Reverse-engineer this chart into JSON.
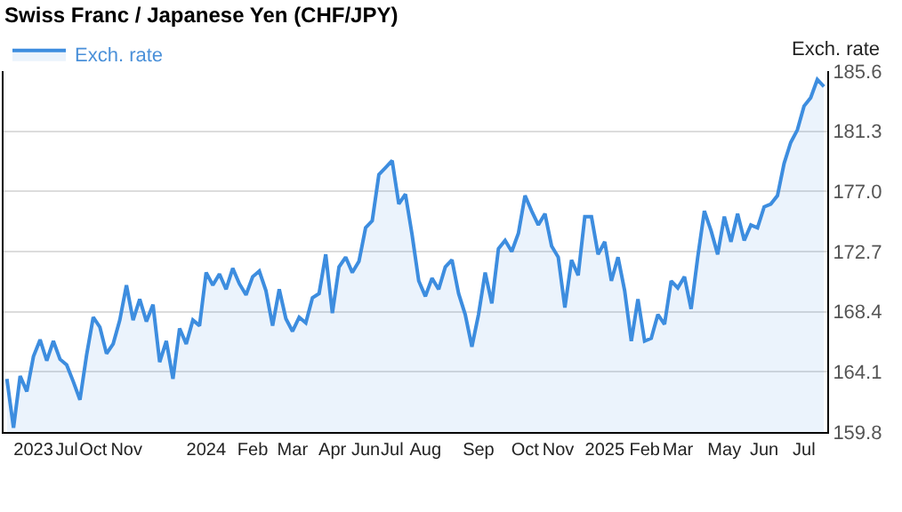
{
  "chart_data": {
    "type": "area",
    "title": "Swiss Franc / Japanese Yen (CHF/JPY)",
    "ylabel": "Exch. rate",
    "categories": [
      null,
      null,
      null,
      null,
      "2023",
      null,
      null,
      null,
      null,
      "Jul",
      null,
      null,
      null,
      "Oct",
      null,
      null,
      null,
      null,
      "Nov",
      null,
      null,
      null,
      null,
      null,
      null,
      null,
      null,
      null,
      null,
      null,
      "2024",
      null,
      null,
      null,
      null,
      null,
      null,
      "Feb",
      null,
      null,
      null,
      null,
      null,
      "Mar",
      null,
      null,
      null,
      null,
      null,
      "Apr",
      null,
      null,
      null,
      null,
      "Jun",
      null,
      null,
      null,
      "Jul",
      null,
      null,
      null,
      null,
      "Aug",
      null,
      null,
      null,
      null,
      null,
      null,
      null,
      "Sep",
      null,
      null,
      null,
      null,
      null,
      null,
      "Oct",
      null,
      null,
      null,
      null,
      "Nov",
      null,
      null,
      null,
      null,
      null,
      null,
      "2025",
      null,
      null,
      null,
      null,
      null,
      "Feb",
      null,
      null,
      null,
      null,
      "Mar",
      null,
      null,
      null,
      null,
      null,
      null,
      "May",
      null,
      null,
      null,
      null,
      null,
      "Jun",
      null,
      null,
      null,
      null,
      null,
      "Jul",
      null,
      null,
      null
    ],
    "series": [
      {
        "name": "Exch. rate",
        "color": "#3d8ddf",
        "values": [
          163.6,
          160.1,
          163.8,
          162.7,
          165.2,
          166.4,
          164.9,
          166.3,
          165.0,
          164.6,
          163.4,
          162.1,
          165.3,
          168.0,
          167.3,
          165.4,
          166.1,
          167.8,
          170.3,
          167.8,
          169.3,
          167.7,
          168.9,
          164.8,
          166.3,
          163.6,
          167.2,
          166.1,
          167.8,
          167.4,
          171.2,
          170.3,
          171.1,
          170.0,
          171.5,
          170.4,
          169.6,
          170.9,
          171.3,
          169.9,
          167.4,
          170.0,
          167.9,
          167.0,
          168.0,
          167.6,
          169.4,
          169.7,
          172.5,
          168.3,
          171.6,
          172.3,
          171.2,
          172.0,
          174.4,
          174.9,
          178.2,
          178.7,
          179.2,
          176.1,
          176.8,
          173.9,
          170.6,
          169.5,
          170.8,
          170.0,
          171.6,
          172.1,
          169.7,
          168.2,
          165.9,
          168.2,
          171.2,
          169.0,
          172.9,
          173.5,
          172.7,
          174.0,
          176.7,
          175.6,
          174.6,
          175.4,
          173.1,
          172.3,
          168.7,
          172.1,
          171.0,
          175.2,
          175.2,
          172.5,
          173.4,
          170.6,
          172.3,
          169.9,
          166.3,
          169.3,
          166.3,
          166.5,
          168.2,
          167.5,
          170.6,
          170.1,
          170.9,
          168.6,
          172.3,
          175.6,
          174.2,
          172.5,
          175.2,
          173.4,
          175.4,
          173.5,
          174.6,
          174.4,
          175.9,
          176.1,
          176.7,
          179.0,
          180.5,
          181.4,
          183.1,
          183.7,
          185.0,
          184.5
        ]
      }
    ],
    "ylim": [
      159.8,
      185.6
    ],
    "yticks": [
      159.8,
      164.1,
      168.4,
      172.7,
      {
        "value": 177,
        "label": "177.0"
      },
      181.3,
      185.6
    ],
    "grid": "y",
    "legend": "top left",
    "marker": "none",
    "line_style": "solid"
  }
}
